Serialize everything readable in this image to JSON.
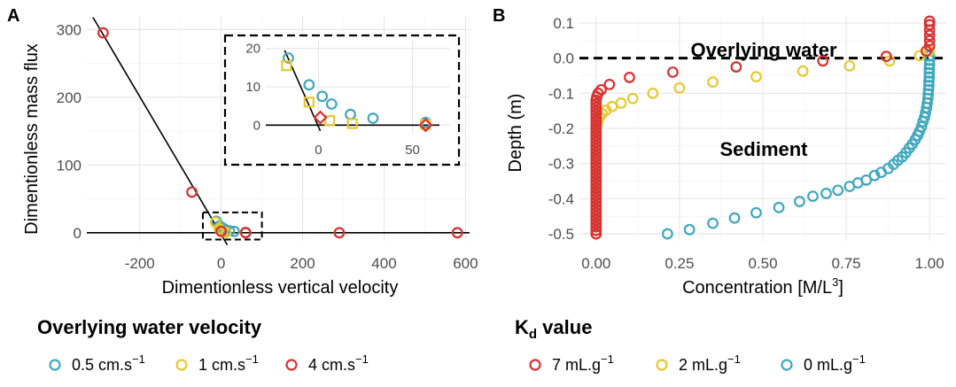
{
  "colors": {
    "blue": "#3fa7bf",
    "yellow": "#e6c92e",
    "red": "#d93030"
  },
  "chart_data": [
    {
      "panel": "A",
      "type": "scatter",
      "xlabel": "Dimentionless vertical velocity",
      "ylabel": "Dimentionless mass flux",
      "xlim": [
        -330,
        610
      ],
      "ylim": [
        -12,
        320
      ],
      "xticks": [
        -200,
        0,
        200,
        400,
        600
      ],
      "yticks": [
        0,
        100,
        200,
        300
      ],
      "fit_line": [
        [
          -315,
          318
        ],
        [
          15,
          -18
        ]
      ],
      "zero_line": 0,
      "inset_box": {
        "x": [
          -45,
          100
        ],
        "y": [
          -10,
          30
        ]
      },
      "series": [
        {
          "name": "0.5 cm.s-1",
          "color": "blue",
          "marker": "circle",
          "points": [
            [
              -12,
              17
            ],
            [
              -4,
              10
            ],
            [
              2,
              7.5
            ],
            [
              8,
              5.5
            ],
            [
              20,
              2.8
            ],
            [
              32,
              2
            ],
            [
              60,
              0.7
            ]
          ]
        },
        {
          "name": "1 cm.s-1",
          "color": "yellow",
          "marker": "circle",
          "points": [
            [
              -14,
              15.5
            ],
            [
              -5,
              6
            ],
            [
              3,
              1.2
            ],
            [
              12,
              0.4
            ],
            [
              60,
              0.2
            ]
          ]
        },
        {
          "name": "4 cm.s-1",
          "color": "red",
          "marker": "circle",
          "points": [
            [
              -290,
              295
            ],
            [
              -72,
              60
            ],
            [
              0,
              2
            ],
            [
              60,
              0
            ],
            [
              290,
              0
            ],
            [
              580,
              0
            ]
          ]
        }
      ]
    },
    {
      "panel": "A-inset",
      "type": "scatter",
      "xlim": [
        -28,
        70
      ],
      "ylim": [
        -2,
        22
      ],
      "xticks": [
        0,
        50
      ],
      "yticks": [
        0,
        10,
        20
      ],
      "fit_line": [
        [
          -18,
          19.5
        ],
        [
          1,
          -1.5
        ]
      ],
      "series": [
        {
          "name": "0.5 cm.s-1",
          "color": "blue",
          "marker": "circle",
          "points": [
            [
              -16,
              17.5
            ],
            [
              -5,
              10.5
            ],
            [
              2,
              7.5
            ],
            [
              7,
              5.5
            ],
            [
              17,
              2.8
            ],
            [
              29,
              1.8
            ],
            [
              57,
              0.7
            ]
          ]
        },
        {
          "name": "1 cm.s-1",
          "color": "yellow",
          "marker": "square",
          "points": [
            [
              -17,
              15.5
            ],
            [
              -5,
              6
            ],
            [
              6,
              1.2
            ],
            [
              18,
              0.4
            ],
            [
              57,
              0.2
            ]
          ]
        },
        {
          "name": "4 cm.s-1",
          "color": "red",
          "marker": "diamond",
          "points": [
            [
              1,
              2
            ],
            [
              57,
              0
            ]
          ]
        }
      ]
    },
    {
      "panel": "B",
      "type": "scatter",
      "xlabel": "Concentration [M/L",
      "xlabel_sup": "3",
      "xlabel_end": "]",
      "ylabel": "Depth (m)",
      "xlim": [
        -0.05,
        1.05
      ],
      "ylim": [
        -0.52,
        0.12
      ],
      "xticks": [
        0,
        0.25,
        0.5,
        0.75,
        1.0
      ],
      "xtick_labels": [
        "0.00",
        "0.25",
        "0.50",
        "0.75",
        "1.00"
      ],
      "yticks": [
        0.1,
        0,
        -0.1,
        -0.2,
        -0.3,
        -0.4,
        -0.5
      ],
      "ytick_labels": [
        "0.1",
        "0.0",
        "-0.1",
        "-0.2",
        "-0.3",
        "-0.4",
        "-0.5"
      ],
      "interface_depth": 0,
      "annotations": [
        "Overlying water",
        "Sediment"
      ],
      "series": [
        {
          "name": "0 mL.g-1",
          "color": "blue",
          "points": [
            [
              0.214,
              -0.5
            ],
            [
              0.28,
              -0.488
            ],
            [
              0.35,
              -0.47
            ],
            [
              0.415,
              -0.455
            ],
            [
              0.48,
              -0.44
            ],
            [
              0.548,
              -0.425
            ],
            [
              0.61,
              -0.408
            ],
            [
              0.65,
              -0.393
            ],
            [
              0.69,
              -0.385
            ],
            [
              0.725,
              -0.376
            ],
            [
              0.76,
              -0.365
            ],
            [
              0.785,
              -0.355
            ],
            [
              0.81,
              -0.347
            ],
            [
              0.835,
              -0.334
            ],
            [
              0.855,
              -0.325
            ],
            [
              0.876,
              -0.314
            ],
            [
              0.892,
              -0.302
            ],
            [
              0.905,
              -0.291
            ],
            [
              0.918,
              -0.281
            ],
            [
              0.929,
              -0.269
            ],
            [
              0.939,
              -0.256
            ],
            [
              0.948,
              -0.245
            ],
            [
              0.957,
              -0.232
            ],
            [
              0.964,
              -0.22
            ],
            [
              0.97,
              -0.208
            ],
            [
              0.976,
              -0.195
            ],
            [
              0.98,
              -0.181
            ],
            [
              0.985,
              -0.168
            ],
            [
              0.988,
              -0.155
            ],
            [
              0.991,
              -0.141
            ],
            [
              0.993,
              -0.128
            ],
            [
              0.995,
              -0.115
            ],
            [
              0.996,
              -0.102
            ],
            [
              0.997,
              -0.09
            ],
            [
              0.998,
              -0.078
            ],
            [
              0.998,
              -0.066
            ],
            [
              0.999,
              -0.054
            ],
            [
              0.999,
              -0.042
            ],
            [
              0.999,
              -0.03
            ],
            [
              1.0,
              -0.018
            ],
            [
              1.0,
              -0.006
            ],
            [
              1.0,
              0.006
            ]
          ]
        },
        {
          "name": "2 mL.g-1",
          "color": "yellow",
          "points": [
            [
              0.0,
              -0.5
            ],
            [
              0.0,
              -0.49
            ],
            [
              0.0,
              -0.48
            ],
            [
              0.0,
              -0.47
            ],
            [
              0.0,
              -0.46
            ],
            [
              0.0,
              -0.45
            ],
            [
              0.0,
              -0.44
            ],
            [
              0.0,
              -0.43
            ],
            [
              0.0,
              -0.42
            ],
            [
              0.0,
              -0.41
            ],
            [
              0.0,
              -0.4
            ],
            [
              0.0,
              -0.39
            ],
            [
              0.0,
              -0.38
            ],
            [
              0.0,
              -0.37
            ],
            [
              0.0,
              -0.36
            ],
            [
              0.0,
              -0.35
            ],
            [
              0.0,
              -0.34
            ],
            [
              0.0,
              -0.33
            ],
            [
              0.0,
              -0.32
            ],
            [
              0.0,
              -0.31
            ],
            [
              0.0,
              -0.3
            ],
            [
              0.0,
              -0.29
            ],
            [
              0.0,
              -0.28
            ],
            [
              0.0,
              -0.27
            ],
            [
              0.0,
              -0.26
            ],
            [
              0.0,
              -0.25
            ],
            [
              0.0,
              -0.24
            ],
            [
              0.0,
              -0.23
            ],
            [
              0.0,
              -0.22
            ],
            [
              0.0,
              -0.21
            ],
            [
              0.0,
              -0.2
            ],
            [
              0.002,
              -0.19
            ],
            [
              0.005,
              -0.18
            ],
            [
              0.01,
              -0.168
            ],
            [
              0.018,
              -0.158
            ],
            [
              0.03,
              -0.148
            ],
            [
              0.048,
              -0.138
            ],
            [
              0.075,
              -0.128
            ],
            [
              0.11,
              -0.115
            ],
            [
              0.17,
              -0.1
            ],
            [
              0.25,
              -0.085
            ],
            [
              0.35,
              -0.068
            ],
            [
              0.48,
              -0.053
            ],
            [
              0.62,
              -0.037
            ],
            [
              0.76,
              -0.022
            ],
            [
              0.88,
              -0.008
            ],
            [
              0.97,
              0.007
            ],
            [
              1.0,
              0.02
            ]
          ]
        },
        {
          "name": "7 mL.g-1",
          "color": "red",
          "points": [
            [
              0.0,
              -0.5
            ],
            [
              0.0,
              -0.49
            ],
            [
              0.0,
              -0.48
            ],
            [
              0.0,
              -0.47
            ],
            [
              0.0,
              -0.46
            ],
            [
              0.0,
              -0.45
            ],
            [
              0.0,
              -0.44
            ],
            [
              0.0,
              -0.43
            ],
            [
              0.0,
              -0.42
            ],
            [
              0.0,
              -0.41
            ],
            [
              0.0,
              -0.4
            ],
            [
              0.0,
              -0.39
            ],
            [
              0.0,
              -0.38
            ],
            [
              0.0,
              -0.37
            ],
            [
              0.0,
              -0.36
            ],
            [
              0.0,
              -0.35
            ],
            [
              0.0,
              -0.34
            ],
            [
              0.0,
              -0.33
            ],
            [
              0.0,
              -0.32
            ],
            [
              0.0,
              -0.31
            ],
            [
              0.0,
              -0.3
            ],
            [
              0.0,
              -0.29
            ],
            [
              0.0,
              -0.28
            ],
            [
              0.0,
              -0.27
            ],
            [
              0.0,
              -0.26
            ],
            [
              0.0,
              -0.25
            ],
            [
              0.0,
              -0.24
            ],
            [
              0.0,
              -0.23
            ],
            [
              0.0,
              -0.22
            ],
            [
              0.0,
              -0.21
            ],
            [
              0.0,
              -0.2
            ],
            [
              0.0,
              -0.19
            ],
            [
              0.0,
              -0.18
            ],
            [
              0.0,
              -0.17
            ],
            [
              0.0,
              -0.16
            ],
            [
              0.0,
              -0.15
            ],
            [
              0.0,
              -0.14
            ],
            [
              0.0,
              -0.13
            ],
            [
              0.0,
              -0.12
            ],
            [
              0.002,
              -0.11
            ],
            [
              0.006,
              -0.1
            ],
            [
              0.015,
              -0.09
            ],
            [
              0.04,
              -0.075
            ],
            [
              0.1,
              -0.055
            ],
            [
              0.23,
              -0.04
            ],
            [
              0.42,
              -0.025
            ],
            [
              0.68,
              -0.008
            ],
            [
              0.87,
              0.005
            ],
            [
              0.99,
              0.02
            ],
            [
              1.0,
              0.035
            ],
            [
              1.0,
              0.05
            ],
            [
              1.0,
              0.065
            ],
            [
              1.0,
              0.08
            ],
            [
              1.0,
              0.095
            ],
            [
              1.0,
              0.105
            ]
          ]
        }
      ]
    }
  ],
  "legends": {
    "velocity": {
      "title": "Overlying water velocity",
      "items": [
        {
          "color": "blue",
          "text": "0.5 cm.s",
          "sup": "−1"
        },
        {
          "color": "yellow",
          "text": "1 cm.s",
          "sup": "−1"
        },
        {
          "color": "red",
          "text": "4 cm.s",
          "sup": "−1"
        }
      ]
    },
    "kd": {
      "title_main": "K",
      "title_sub": "d",
      "title_rest": " value",
      "items": [
        {
          "color": "red",
          "text": "7 mL.g",
          "sup": "−1"
        },
        {
          "color": "yellow",
          "text": "2 mL.g",
          "sup": "−1"
        },
        {
          "color": "blue",
          "text": "0 mL.g",
          "sup": "−1"
        }
      ]
    }
  }
}
